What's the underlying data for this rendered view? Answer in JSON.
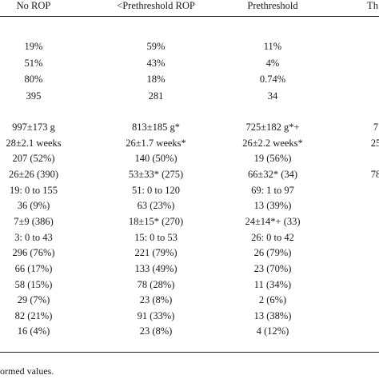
{
  "table": {
    "headers": [
      "No ROP",
      "<Prethreshold ROP",
      "Prethreshold",
      "Th"
    ],
    "group1": [
      [
        "19%",
        "59%",
        "11%",
        ""
      ],
      [
        "51%",
        "43%",
        "4%",
        ""
      ],
      [
        "80%",
        "18%",
        "0.74%",
        ""
      ],
      [
        "395",
        "281",
        "34",
        ""
      ]
    ],
    "group2": [
      [
        "997±173 g",
        "813±185 g*",
        "725±182 g*+",
        "7"
      ],
      [
        "28±2.1 weeks",
        "26±1.7 weeks*",
        "26±2.2 weeks*",
        "25"
      ],
      [
        "207 (52%)",
        "140 (50%)",
        "19 (56%)",
        ""
      ],
      [
        "26±26 (390)",
        "53±33* (275)",
        "66±32* (34)",
        "78"
      ],
      [
        "19: 0 to 155",
        "51: 0 to 120",
        "69: 1 to 97",
        ""
      ],
      [
        "36 (9%)",
        "63 (23%)",
        "13 (39%)",
        ""
      ],
      [
        "7±9 (386)",
        "18±15* (270)",
        "24±14*+ (33)",
        ""
      ],
      [
        "3: 0 to 43",
        "15: 0 to 53",
        "26: 0 to 42",
        ""
      ],
      [
        "296 (76%)",
        "221 (79%)",
        "26 (79%)",
        ""
      ],
      [
        "66 (17%)",
        "133 (49%)",
        "23 (70%)",
        ""
      ],
      [
        "58 (15%)",
        "78 (28%)",
        "11 (34%)",
        ""
      ],
      [
        "29 (7%)",
        "23 (8%)",
        "2 (6%)",
        ""
      ],
      [
        "82 (21%)",
        "91 (33%)",
        "13 (38%)",
        ""
      ],
      [
        "16 (4%)",
        "23 (8%)",
        "4 (12%)",
        ""
      ]
    ]
  },
  "footnote": "formed values."
}
